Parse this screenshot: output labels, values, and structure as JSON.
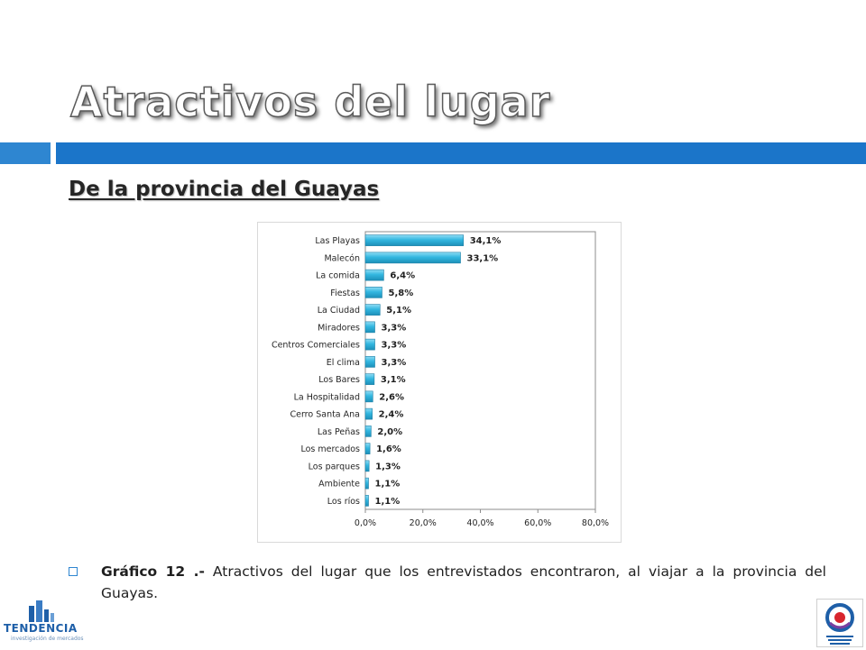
{
  "slide": {
    "title": "Atractivos del lugar",
    "subtitle": "De la provincia del Guayas",
    "accent_color": "#1b75c9"
  },
  "caption": {
    "lead": "Gráfico 12 .-",
    "text": " Atractivos del lugar que los entrevistados encontraron, al viajar a la provincia del Guayas."
  },
  "logos": {
    "left_name": "TENDENCIA",
    "left_tagline": "investigación de mercados",
    "left_icon": "building-chart-icon",
    "right_icon": "tourism-emblem-icon"
  },
  "chart_data": {
    "type": "bar",
    "orientation": "horizontal",
    "title": "",
    "xlabel": "",
    "ylabel": "",
    "xlim": [
      0,
      80
    ],
    "x_ticks": [
      "0,0%",
      "20,0%",
      "40,0%",
      "60,0%",
      "80,0%"
    ],
    "x_tick_values": [
      0,
      20,
      40,
      60,
      80
    ],
    "grid": false,
    "legend": "none",
    "bar_color": "#33b7e0",
    "categories": [
      "Las Playas",
      "Malecón",
      "La comida",
      "Fiestas",
      "La Ciudad",
      "Miradores",
      "Centros Comerciales",
      "El clima",
      "Los Bares",
      "La Hospitalidad",
      "Cerro Santa  Ana",
      "Las Peñas",
      "Los mercados",
      "Los parques",
      "Ambiente",
      "Los ríos"
    ],
    "values": [
      34.1,
      33.1,
      6.4,
      5.8,
      5.1,
      3.3,
      3.3,
      3.3,
      3.1,
      2.6,
      2.4,
      2.0,
      1.6,
      1.3,
      1.1,
      1.1
    ],
    "data_labels": [
      "34,1%",
      "33,1%",
      "6,4%",
      "5,8%",
      "5,1%",
      "3,3%",
      "3,3%",
      "3,3%",
      "3,1%",
      "2,6%",
      "2,4%",
      "2,0%",
      "1,6%",
      "1,3%",
      "1,1%",
      "1,1%"
    ]
  }
}
